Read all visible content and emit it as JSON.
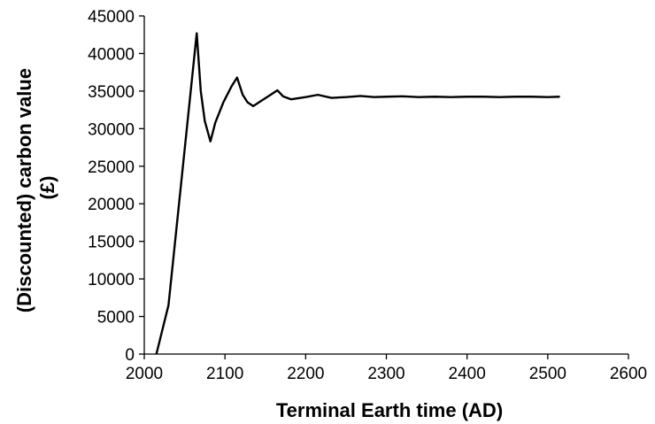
{
  "chart_data": {
    "type": "line",
    "title": "",
    "xlabel": "Terminal Earth time (AD)",
    "ylabel_lines": [
      "(Discounted) carbon value",
      "(£)"
    ],
    "xlim": [
      2000,
      2600
    ],
    "ylim": [
      0,
      45000
    ],
    "x_ticks": [
      2000,
      2100,
      2200,
      2300,
      2400,
      2500,
      2600
    ],
    "y_ticks": [
      0,
      5000,
      10000,
      15000,
      20000,
      25000,
      30000,
      35000,
      40000,
      45000
    ],
    "grid": false,
    "legend": "none",
    "line_color": "#000000",
    "series": [
      {
        "x": [
          2015,
          2030,
          2065,
          2070,
          2075,
          2082,
          2088,
          2098,
          2108,
          2115,
          2122,
          2128,
          2135,
          2145,
          2155,
          2165,
          2172,
          2182,
          2200,
          2215,
          2232,
          2250,
          2268,
          2285,
          2300,
          2320,
          2340,
          2360,
          2380,
          2400,
          2420,
          2440,
          2460,
          2480,
          2500,
          2515
        ],
        "y": [
          0,
          6500,
          42700,
          35000,
          31000,
          28300,
          30800,
          33500,
          35600,
          36800,
          34500,
          33500,
          33000,
          33700,
          34400,
          35100,
          34300,
          33900,
          34200,
          34500,
          34100,
          34200,
          34350,
          34200,
          34250,
          34300,
          34200,
          34250,
          34200,
          34250,
          34250,
          34200,
          34250,
          34250,
          34200,
          34250
        ]
      }
    ]
  }
}
